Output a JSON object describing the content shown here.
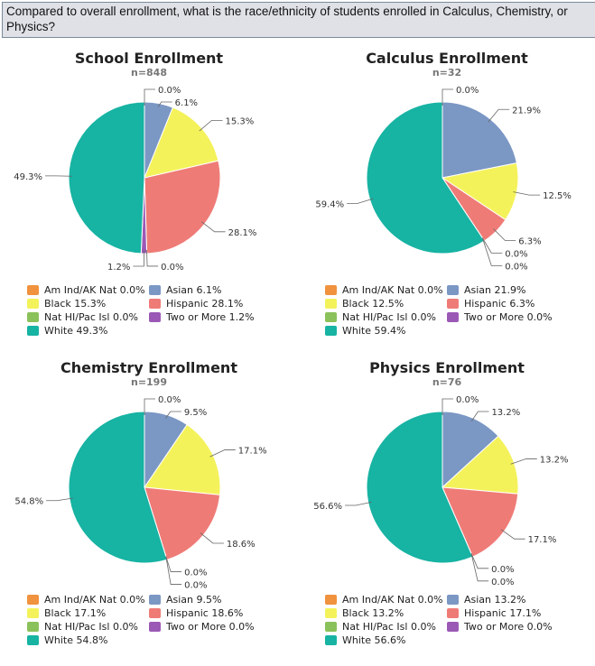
{
  "question": "Compared to overall enrollment, what is the race/ethnicity of students enrolled in Calculus, Chemistry, or Physics?",
  "chart_data": [
    {
      "type": "pie",
      "title": "School Enrollment",
      "subtitle": "n=848",
      "categories": [
        "Am Ind/AK Nat",
        "Asian",
        "Black",
        "Hispanic",
        "Nat HI/Pac Isl",
        "Two or More",
        "White"
      ],
      "values": [
        0.0,
        6.1,
        15.3,
        28.1,
        0.0,
        1.2,
        49.3
      ],
      "legend": [
        "Am Ind/AK Nat 0.0%",
        "Asian 6.1%",
        "Black 15.3%",
        "Hispanic 28.1%",
        "Nat HI/Pac Isl 0.0%",
        "Two or More 1.2%",
        "White 49.3%"
      ]
    },
    {
      "type": "pie",
      "title": "Calculus Enrollment",
      "subtitle": "n=32",
      "categories": [
        "Am Ind/AK Nat",
        "Asian",
        "Black",
        "Hispanic",
        "Nat HI/Pac Isl",
        "Two or More",
        "White"
      ],
      "values": [
        0.0,
        21.9,
        12.5,
        6.3,
        0.0,
        0.0,
        59.4
      ],
      "legend": [
        "Am Ind/AK Nat 0.0%",
        "Asian 21.9%",
        "Black 12.5%",
        "Hispanic 6.3%",
        "Nat HI/Pac Isl 0.0%",
        "Two or More 0.0%",
        "White 59.4%"
      ]
    },
    {
      "type": "pie",
      "title": "Chemistry Enrollment",
      "subtitle": "n=199",
      "categories": [
        "Am Ind/AK Nat",
        "Asian",
        "Black",
        "Hispanic",
        "Nat HI/Pac Isl",
        "Two or More",
        "White"
      ],
      "values": [
        0.0,
        9.5,
        17.1,
        18.6,
        0.0,
        0.0,
        54.8
      ],
      "legend": [
        "Am Ind/AK Nat 0.0%",
        "Asian 9.5%",
        "Black 17.1%",
        "Hispanic 18.6%",
        "Nat HI/Pac Isl 0.0%",
        "Two or More 0.0%",
        "White 54.8%"
      ]
    },
    {
      "type": "pie",
      "title": "Physics Enrollment",
      "subtitle": "n=76",
      "categories": [
        "Am Ind/AK Nat",
        "Asian",
        "Black",
        "Hispanic",
        "Nat HI/Pac Isl",
        "Two or More",
        "White"
      ],
      "values": [
        0.0,
        13.2,
        13.2,
        17.1,
        0.0,
        0.0,
        56.6
      ],
      "legend": [
        "Am Ind/AK Nat 0.0%",
        "Asian 13.2%",
        "Black 13.2%",
        "Hispanic 17.1%",
        "Nat HI/Pac Isl 0.0%",
        "Two or More 0.0%",
        "White 56.6%"
      ]
    }
  ],
  "colors": [
    "#f0923e",
    "#7b97c4",
    "#f4f25a",
    "#ef7b77",
    "#8bc15a",
    "#9b59b6",
    "#17b3a3"
  ]
}
